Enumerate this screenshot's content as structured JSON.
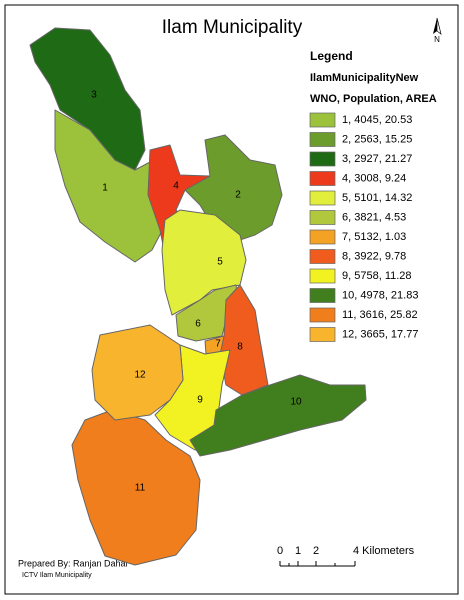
{
  "title": "Ilam Municipality",
  "north": "N",
  "legend": {
    "title": "Legend",
    "layer": "IlamMunicipalityNew",
    "fields": "WNO, Population, AREA"
  },
  "wards": [
    {
      "label": "1",
      "legend": "1, 4045, 20.53",
      "color": "#9cc23c"
    },
    {
      "label": "2",
      "legend": "2, 2563, 15.25",
      "color": "#6c9c2c"
    },
    {
      "label": "3",
      "legend": "3, 2927, 21.27",
      "color": "#1f6a14"
    },
    {
      "label": "4",
      "legend": "4, 3008, 9.24",
      "color": "#ee3a1c"
    },
    {
      "label": "5",
      "legend": "5, 5101, 14.32",
      "color": "#e2ee3c"
    },
    {
      "label": "6",
      "legend": "6, 3821, 4.53",
      "color": "#b2c83c"
    },
    {
      "label": "7",
      "legend": "7, 5132, 1.03",
      "color": "#f4a224"
    },
    {
      "label": "8",
      "legend": "8, 3922, 9.78",
      "color": "#f05c1e"
    },
    {
      "label": "9",
      "legend": "9, 5758, 11.28",
      "color": "#f2f222"
    },
    {
      "label": "10",
      "legend": "10, 4978, 21.83",
      "color": "#407e1e"
    },
    {
      "label": "11",
      "legend": "11, 3616, 25.82",
      "color": "#f07e1c"
    },
    {
      "label": "12",
      "legend": "12, 3665, 17.77",
      "color": "#f8b42c"
    }
  ],
  "scale": {
    "labels": [
      "0",
      "1",
      "2",
      "4 Kilometers"
    ]
  },
  "credits": {
    "author": "Prepared By: Ranjan Dahal",
    "org": "ICTV Ilam Municipality"
  }
}
